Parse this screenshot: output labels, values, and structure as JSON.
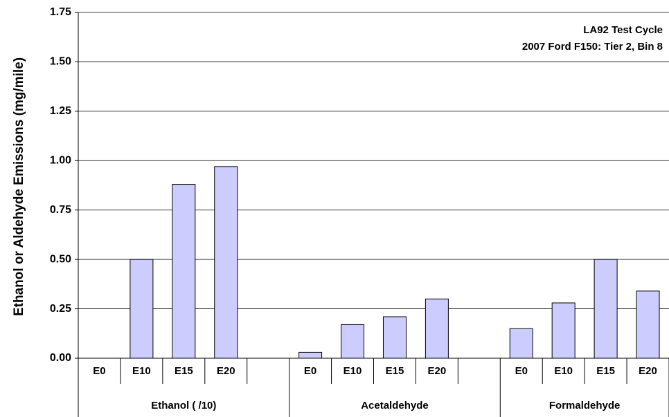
{
  "chart_data": {
    "type": "bar",
    "y_label": "Ethanol or Aldehyde Emissions (mg/mile)",
    "annotations": [
      "LA92 Test Cycle",
      "2007 Ford F150:  Tier 2, Bin 8"
    ],
    "categories": [
      "E0",
      "E10",
      "E15",
      "E20",
      null,
      "E0",
      "E10",
      "E15",
      "E20",
      null,
      "E0",
      "E10",
      "E15",
      "E20"
    ],
    "groups": [
      "Ethanol ( /10)",
      "Acetaldehyde",
      "Formaldehyde"
    ],
    "values": [
      0,
      0.5,
      0.88,
      0.97,
      null,
      0.03,
      0.17,
      0.21,
      0.3,
      null,
      0.15,
      0.28,
      0.5,
      0.34
    ],
    "color": "#ccccff",
    "ylim": [
      0,
      1.75
    ],
    "yticks": [
      {
        "value": 0,
        "label": "0.00"
      },
      {
        "value": 0.25,
        "label": "0.25"
      },
      {
        "value": 0.5,
        "label": "0.50"
      },
      {
        "value": 0.75,
        "label": "0.75"
      },
      {
        "value": 1,
        "label": "1.00"
      },
      {
        "value": 1.25,
        "label": "1.25"
      },
      {
        "value": 1.5,
        "label": "1.50"
      },
      {
        "value": 1.75,
        "label": "1.75"
      }
    ],
    "grid": true
  }
}
